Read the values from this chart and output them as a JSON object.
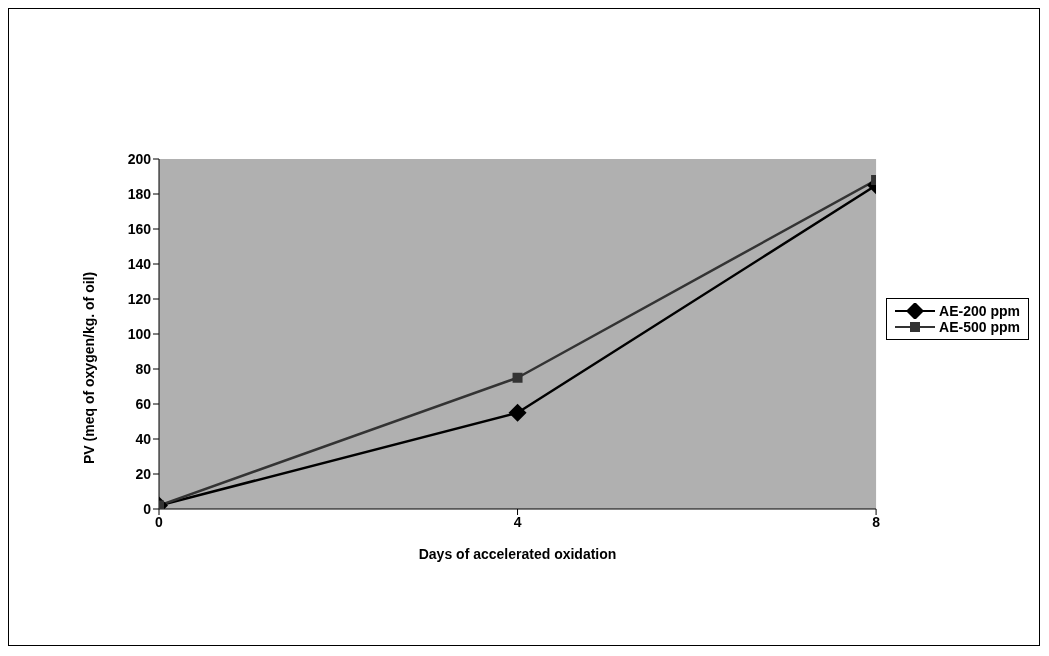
{
  "chart_data": {
    "type": "line",
    "xlabel": "Days of accelerated oxidation",
    "ylabel": "PV (meq of oxygen/kg. of oil)",
    "x": [
      0,
      4,
      8
    ],
    "series": [
      {
        "name": "AE-200 ppm",
        "color": "#000000",
        "marker": "diamond",
        "values": [
          2,
          55,
          185
        ]
      },
      {
        "name": "AE-500 ppm",
        "color": "#333333",
        "marker": "square",
        "values": [
          2,
          75,
          188
        ]
      }
    ],
    "xlim": [
      0,
      8
    ],
    "xticks": [
      0,
      4,
      8
    ],
    "ylim": [
      0,
      200
    ],
    "yticks": [
      0,
      20,
      40,
      60,
      80,
      100,
      120,
      140,
      160,
      180,
      200
    ],
    "grid": false,
    "legend": "right",
    "line_style": "solid"
  }
}
